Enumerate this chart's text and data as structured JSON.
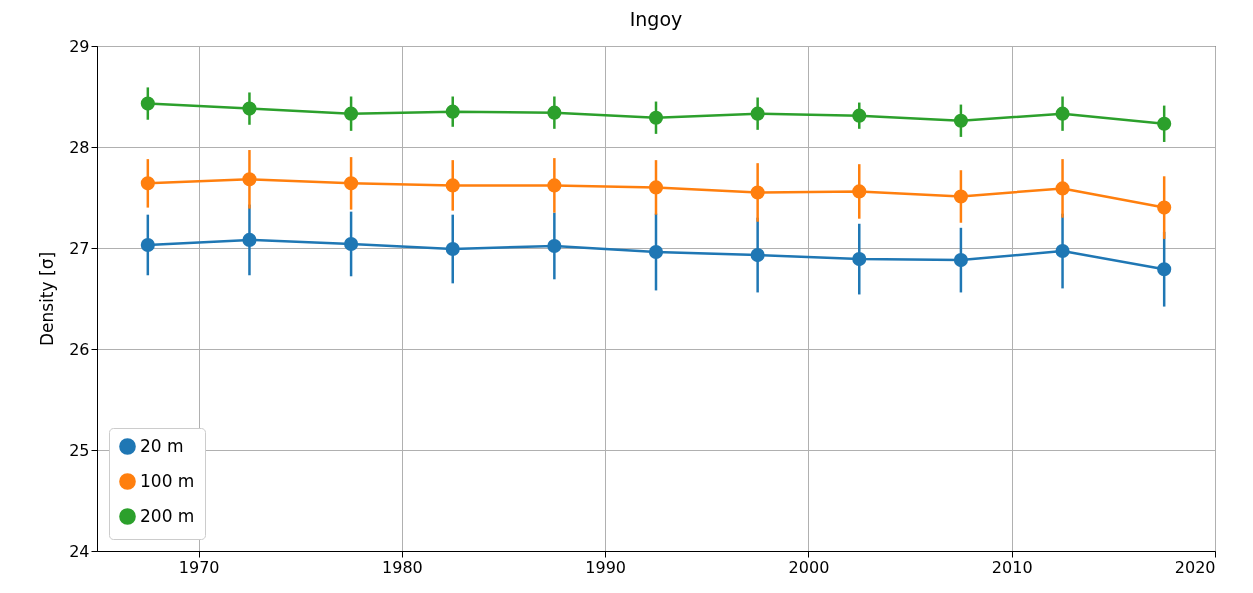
{
  "chart_data": {
    "type": "line",
    "title": "Ingoy",
    "ylabel": "Density [σ]",
    "x": [
      1967.5,
      1972.5,
      1977.5,
      1982.5,
      1987.5,
      1992.5,
      1997.5,
      2002.5,
      2007.5,
      2012.5,
      2017.5
    ],
    "series": [
      {
        "name": "20 m",
        "color": "#1f77b4",
        "values": [
          27.03,
          27.08,
          27.04,
          26.99,
          27.02,
          26.96,
          26.93,
          26.89,
          26.88,
          26.97,
          26.79
        ],
        "errors": [
          0.3,
          0.35,
          0.32,
          0.34,
          0.33,
          0.38,
          0.37,
          0.35,
          0.32,
          0.37,
          0.37
        ]
      },
      {
        "name": "100 m",
        "color": "#ff7f0e",
        "values": [
          27.64,
          27.68,
          27.64,
          27.62,
          27.62,
          27.6,
          27.55,
          27.56,
          27.51,
          27.59,
          27.4
        ],
        "errors": [
          0.24,
          0.29,
          0.26,
          0.25,
          0.27,
          0.27,
          0.29,
          0.27,
          0.26,
          0.29,
          0.31
        ]
      },
      {
        "name": "200 m",
        "color": "#2ca02c",
        "values": [
          28.43,
          28.38,
          28.33,
          28.35,
          28.34,
          28.29,
          28.33,
          28.31,
          28.26,
          28.33,
          28.23
        ],
        "errors": [
          0.16,
          0.16,
          0.17,
          0.15,
          0.16,
          0.16,
          0.16,
          0.13,
          0.16,
          0.17,
          0.18
        ]
      }
    ],
    "xlim": [
      1965,
      2020
    ],
    "xticks": [
      1970,
      1980,
      1990,
      2000,
      2010,
      2020
    ],
    "ylim": [
      24,
      29
    ],
    "yticks": [
      24,
      25,
      26,
      27,
      28,
      29
    ],
    "grid": true,
    "legend": "bottom left",
    "marker": "circle",
    "line_style": "solid"
  }
}
